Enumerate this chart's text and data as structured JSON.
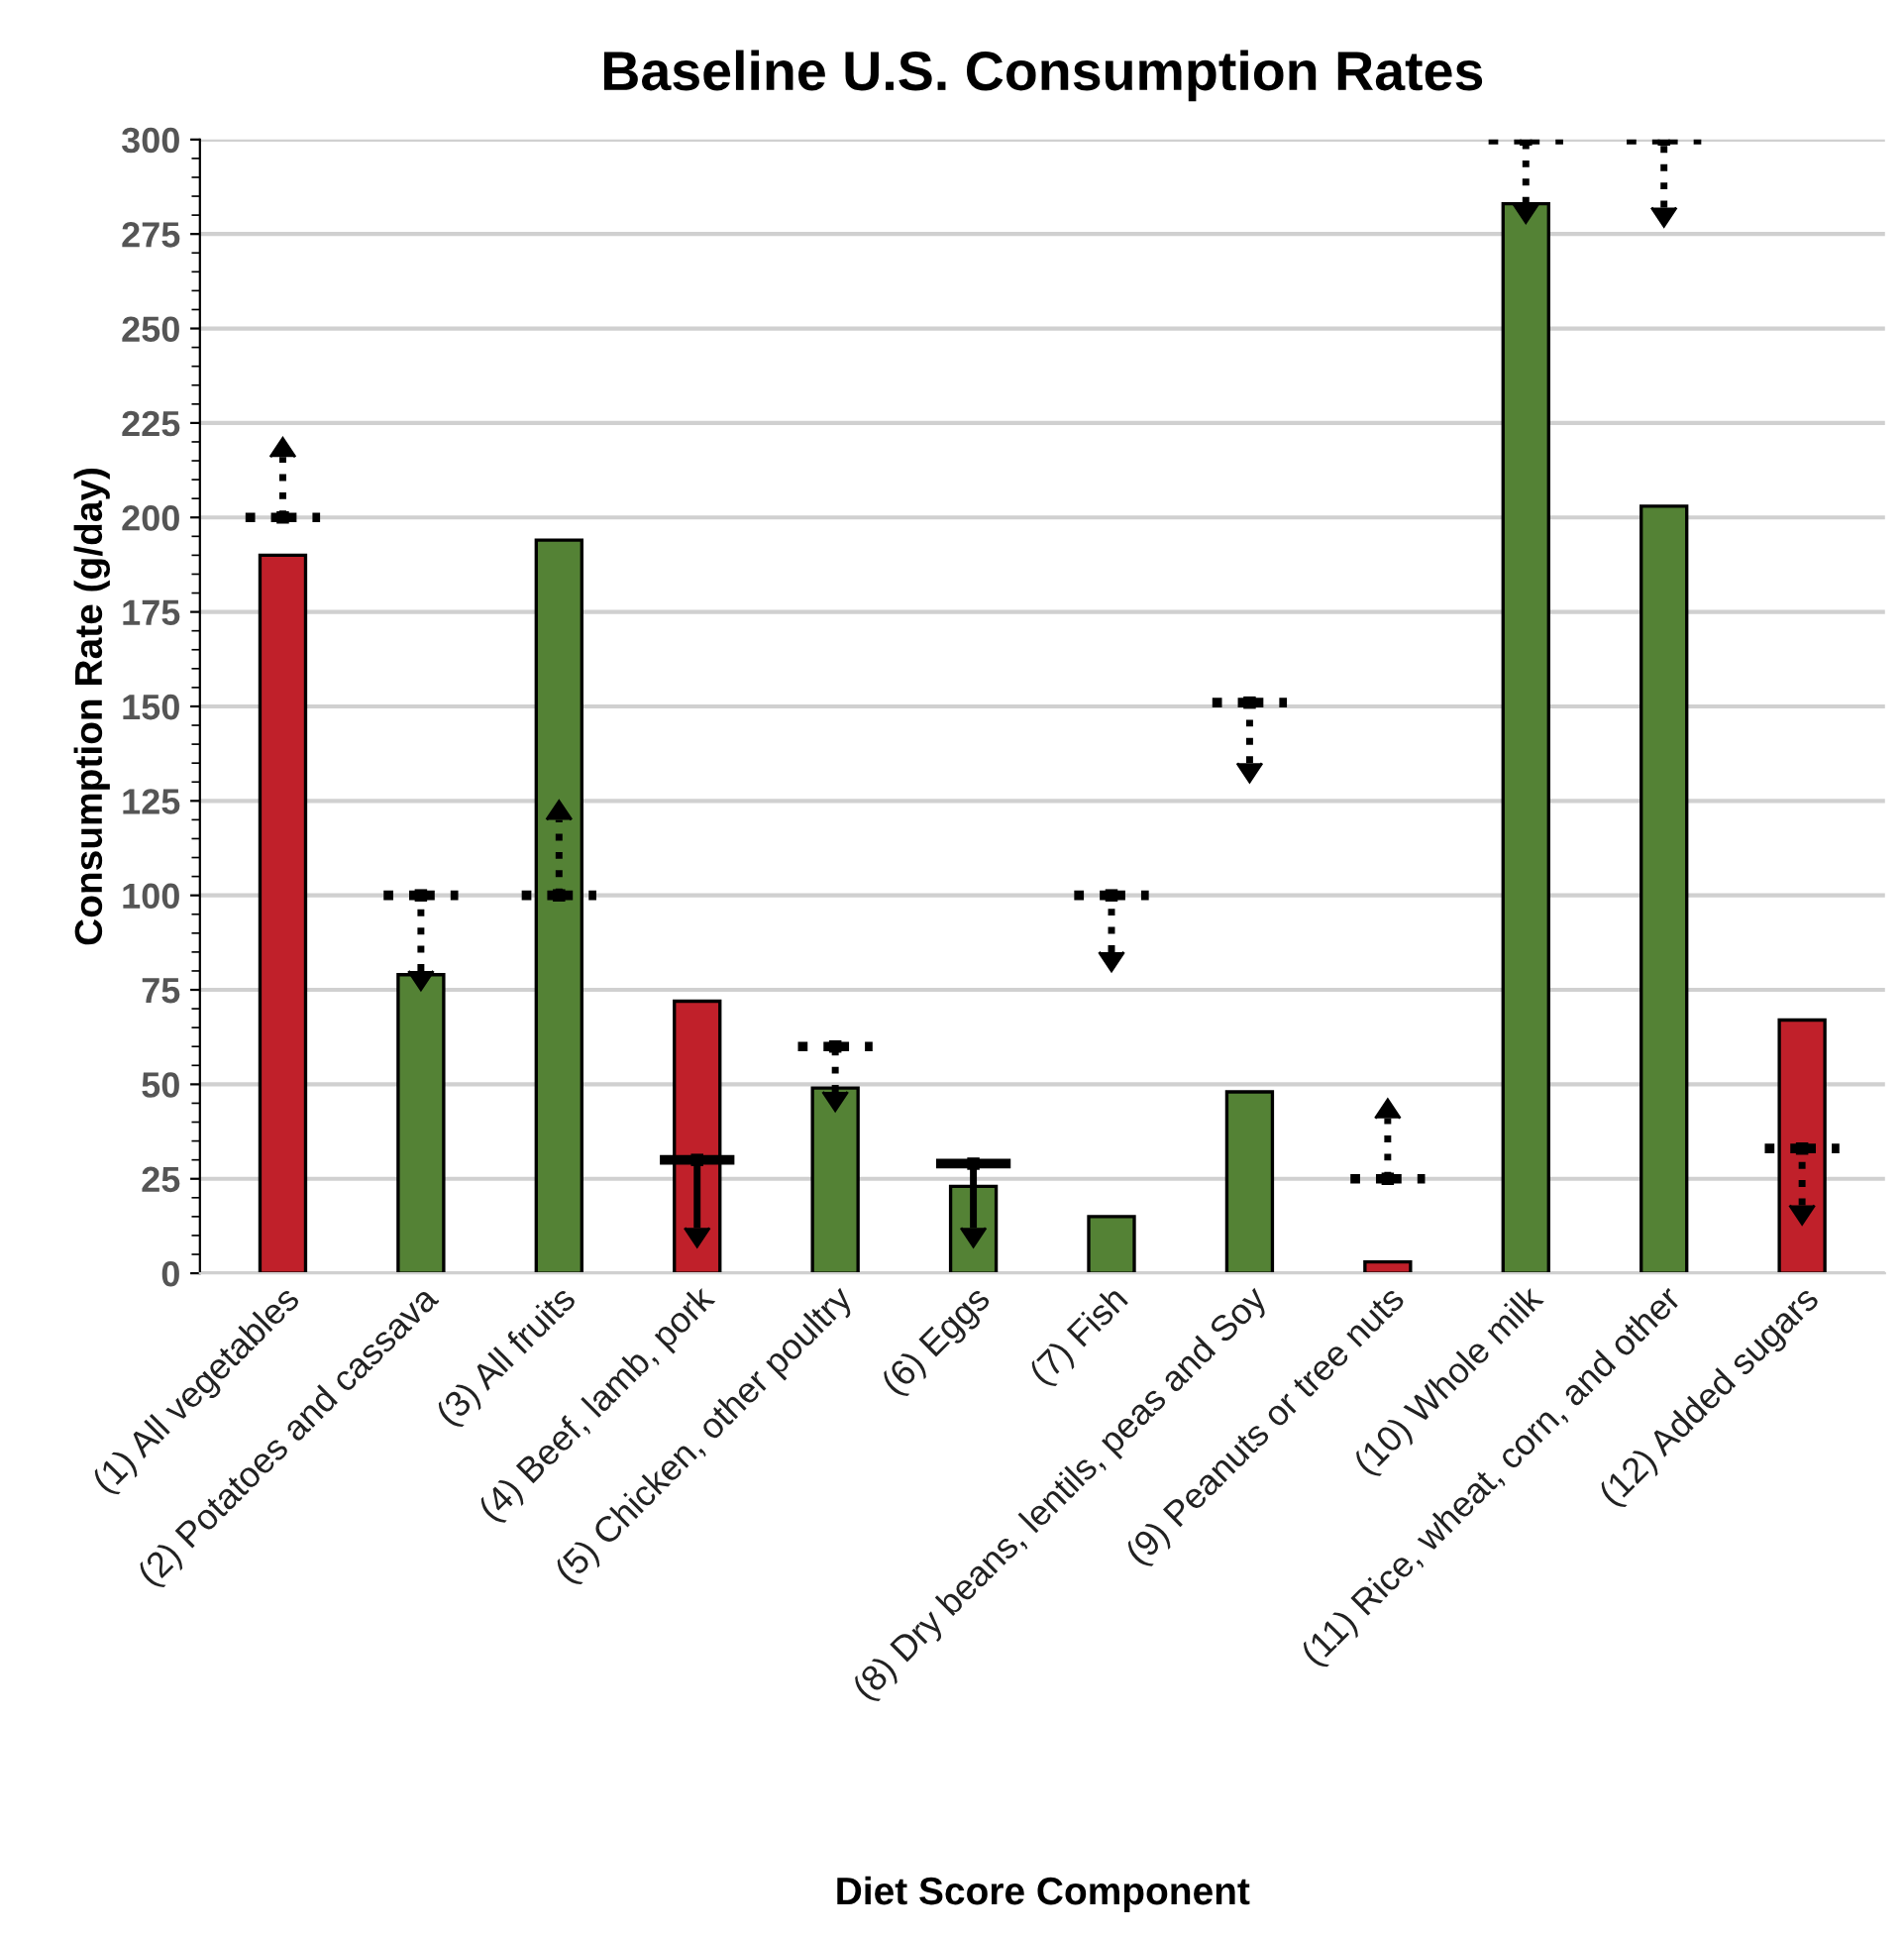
{
  "chart_data": {
    "type": "bar",
    "title": "Baseline U.S. Consumption Rates",
    "xlabel": "Diet Score Component",
    "ylabel": "Consumption Rate (g/day)",
    "categories": [
      "(1) All vegetables",
      "(2) Potatoes and cassava",
      "(3) All fruits",
      "(4) Beef, lamb, pork",
      "(5) Chicken, other poultry",
      "(6) Eggs",
      "(7) Fish",
      "(8) Dry beans, lentils, peas and Soy",
      "(9) Peanuts or tree nuts",
      "(10) Whole milk",
      "(11) Rice, wheat, corn, and other",
      "(12) Added sugars"
    ],
    "series": [
      {
        "values": [
          190,
          79,
          194,
          72,
          49,
          23,
          15,
          48,
          3,
          283,
          203,
          67
        ],
        "colors": [
          "#c0202a",
          "#548235",
          "#548235",
          "#c0202a",
          "#548235",
          "#548235",
          "#548235",
          "#548235",
          "#c0202a",
          "#548235",
          "#548235",
          "#c0202a"
        ]
      },
      {
        "type": "scatter",
        "line_style": "dotted",
        "color": "#000000",
        "values": [
          200,
          100,
          100,
          null,
          60,
          null,
          100,
          151,
          25,
          300,
          300,
          33
        ],
        "errors": [
          [
            200,
            216
          ],
          [
            80,
            100
          ],
          [
            100,
            120
          ],
          null,
          [
            48,
            60
          ],
          null,
          [
            85,
            100
          ],
          [
            135,
            151
          ],
          [
            25,
            41
          ],
          [
            283,
            300
          ],
          [
            282,
            300
          ],
          [
            18,
            33
          ]
        ]
      },
      {
        "type": "scatter",
        "line_style": "solid",
        "color": "#000000",
        "values": [
          null,
          null,
          null,
          30,
          null,
          29,
          null,
          null,
          null,
          null,
          null,
          null
        ],
        "errors": [
          null,
          null,
          null,
          [
            12,
            30
          ],
          null,
          [
            12,
            29
          ],
          null,
          null,
          null,
          null,
          null,
          null
        ]
      }
    ],
    "ylim": [
      0,
      300
    ],
    "yticks": [
      0,
      25,
      50,
      75,
      100,
      125,
      150,
      175,
      200,
      225,
      250,
      275,
      300
    ],
    "grid": "y"
  }
}
